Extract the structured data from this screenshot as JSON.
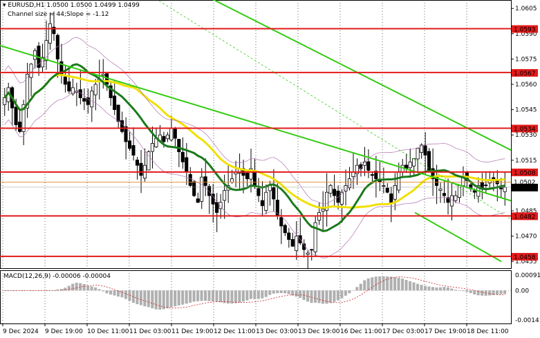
{
  "header": {
    "symbol_line": "▾ EURUSD,H1  1.0500 1.0500 1.0499 1.0499",
    "channel_info": "Channel size = 44;Slope = -1.12"
  },
  "macd": {
    "label": "MACD(12,26,9) -0.00006 -0.00004",
    "scale_top": "0.00091",
    "scale_mid": "0.00",
    "scale_bottom": "-0.00141"
  },
  "levels": [
    {
      "price": 1.0593,
      "label": "1.0593"
    },
    {
      "price": 1.0567,
      "label": "1.0567"
    },
    {
      "price": 1.0534,
      "label": "1.0534"
    },
    {
      "price": 1.0508,
      "label": "1.0508"
    },
    {
      "price": 1.0482,
      "label": "1.0482"
    },
    {
      "price": 1.0458,
      "label": "1.0458"
    }
  ],
  "current_price": {
    "value": 1.0499,
    "label": "1.0499",
    "bid_label": "1.0502"
  },
  "colors": {
    "level": "#e31a1a",
    "channel": "#33cc11",
    "ma_yellow": "#f0e000",
    "ma_green": "#1a7a1a",
    "candle": "#000000",
    "macd_hist": "#b0b0b0",
    "macd_signal": "#cc2222"
  },
  "chart_data": {
    "type": "candlestick",
    "symbol": "EURUSD",
    "timeframe": "H1",
    "y_ticks": [
      "1.0605",
      "1.0590",
      "1.0575",
      "1.0560",
      "1.0545",
      "1.0530",
      "1.0515",
      "1.0485",
      "1.0470",
      "1.0455"
    ],
    "ylim": [
      1.0451,
      1.061
    ],
    "x_ticks": [
      "9 Dec 2024",
      "9 Dec 19:00",
      "10 Dec 11:00",
      "11 Dec 03:00",
      "11 Dec 19:00",
      "12 Dec 11:00",
      "13 Dec 03:00",
      "13 Dec 19:00",
      "16 Dec 11:00",
      "17 Dec 03:00",
      "17 Dec 19:00",
      "18 Dec 11:00"
    ],
    "price_path": [
      1.0552,
      1.0558,
      1.0546,
      1.0536,
      1.0532,
      1.0548,
      1.0566,
      1.0572,
      1.058,
      1.057,
      1.0576,
      1.0586,
      1.0596,
      1.059,
      1.0575,
      1.0566,
      1.056,
      1.0556,
      1.0558,
      1.0556,
      1.0552,
      1.055,
      1.0548,
      1.0556,
      1.056,
      1.0563,
      1.0566,
      1.056,
      1.0552,
      1.0545,
      1.0538,
      1.0532,
      1.0526,
      1.0522,
      1.0518,
      1.0512,
      1.0506,
      1.0512,
      1.052,
      1.0525,
      1.0528,
      1.053,
      1.0526,
      1.053,
      1.0534,
      1.0528,
      1.052,
      1.0514,
      1.0508,
      1.05,
      1.0494,
      1.049,
      1.0505,
      1.05,
      1.0494,
      1.0489,
      1.0484,
      1.049,
      1.0497,
      1.05,
      1.0504,
      1.0508,
      1.051,
      1.0506,
      1.0504,
      1.051,
      1.05,
      1.0494,
      1.0488,
      1.0496,
      1.05,
      1.0492,
      1.0482,
      1.0476,
      1.0472,
      1.0468,
      1.0464,
      1.047,
      1.0466,
      1.0462,
      1.046,
      1.0462,
      1.0478,
      1.0484,
      1.0486,
      1.0496,
      1.05,
      1.0494,
      1.049,
      1.0496,
      1.05,
      1.0504,
      1.0508,
      1.0512,
      1.051,
      1.0514,
      1.0509,
      1.0506,
      1.0504,
      1.0502,
      1.05,
      1.0496,
      1.049,
      1.05,
      1.0508,
      1.0512,
      1.051,
      1.0514,
      1.0516,
      1.0522,
      1.0524,
      1.0518,
      1.0508,
      1.0504,
      1.05,
      1.0498,
      1.0494,
      1.049,
      1.0494,
      1.0494,
      1.05,
      1.0505,
      1.0503,
      1.0498,
      1.0496,
      1.05,
      1.0498,
      1.05,
      1.0503,
      1.0504,
      1.0501,
      1.0498,
      1.0499
    ],
    "indicators": {
      "channel": {
        "size": 44,
        "slope": -1.12
      }
    }
  }
}
